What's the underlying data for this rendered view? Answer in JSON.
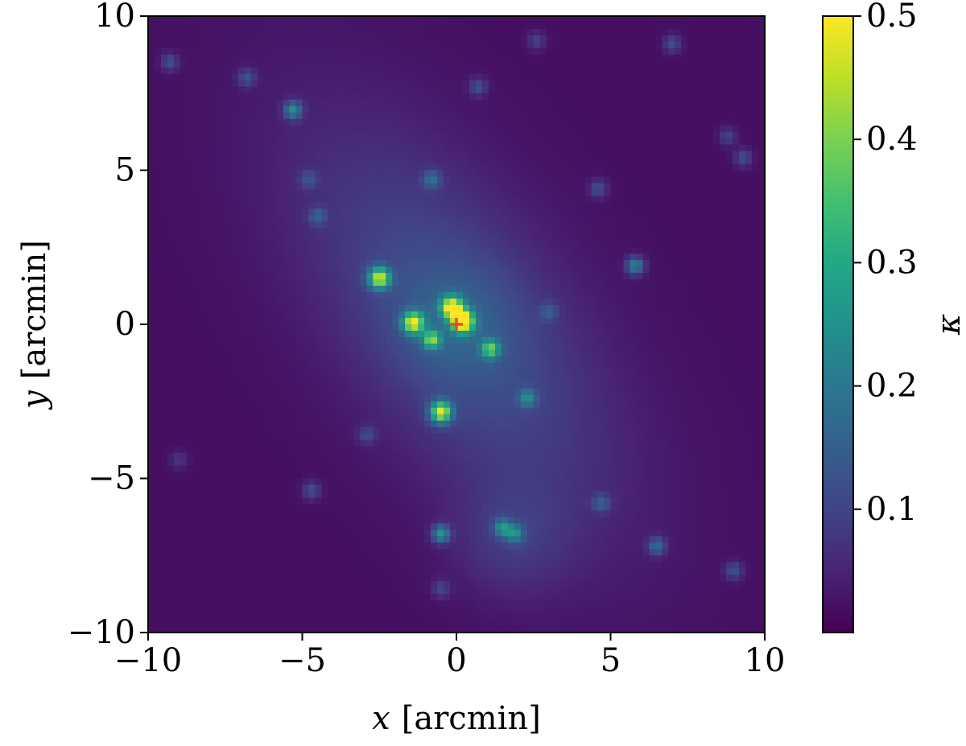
{
  "chart_data": {
    "type": "heatmap",
    "description": "convergence map",
    "xlabel": {
      "var": "x",
      "unit": "[arcmin]"
    },
    "ylabel": {
      "var": "y",
      "unit": "[arcmin]"
    },
    "xlim": [
      -10,
      10
    ],
    "ylim": [
      -10,
      10
    ],
    "xticks": [
      -10,
      -5,
      0,
      5,
      10
    ],
    "yticks": [
      -10,
      -5,
      0,
      5,
      10
    ],
    "xtick_labels": [
      "−10",
      "−5",
      "0",
      "5",
      "10"
    ],
    "ytick_labels": [
      "−10",
      "−5",
      "0",
      "5",
      "10"
    ],
    "grid": false,
    "colormap": "viridis",
    "colorbar": {
      "label": "κ",
      "range": [
        0.0,
        0.5
      ],
      "ticks": [
        0.1,
        0.2,
        0.3,
        0.4,
        0.5
      ],
      "tick_labels": [
        "0.1",
        "0.2",
        "0.3",
        "0.4",
        "0.5"
      ]
    },
    "background_kappa": 0.02,
    "diffuse_halo": {
      "center": [
        0.0,
        0.0
      ],
      "major_axis_angle_deg": 125,
      "sigma_major": 5.2,
      "sigma_minor": 2.4,
      "peak_kappa": 0.1
    },
    "secondary_halo": {
      "center": [
        1.8,
        -7.0
      ],
      "sigma": 1.3,
      "peak_kappa": 0.05
    },
    "peaks": [
      {
        "x": 0.2,
        "y": 0.1,
        "kappa": 0.5
      },
      {
        "x": -0.15,
        "y": 0.55,
        "kappa": 0.42
      },
      {
        "x": -2.5,
        "y": 1.5,
        "kappa": 0.4
      },
      {
        "x": -1.4,
        "y": 0.05,
        "kappa": 0.4
      },
      {
        "x": -0.5,
        "y": -2.85,
        "kappa": 0.42
      },
      {
        "x": -5.3,
        "y": 6.95,
        "kappa": 0.22
      },
      {
        "x": -0.8,
        "y": -0.5,
        "kappa": 0.3
      },
      {
        "x": 1.1,
        "y": -0.8,
        "kappa": 0.28
      },
      {
        "x": 5.8,
        "y": 1.9,
        "kappa": 0.22
      },
      {
        "x": -0.5,
        "y": -6.8,
        "kappa": 0.24
      },
      {
        "x": 1.5,
        "y": -6.6,
        "kappa": 0.2
      },
      {
        "x": 1.9,
        "y": -6.8,
        "kappa": 0.18
      },
      {
        "x": 2.3,
        "y": -2.4,
        "kappa": 0.17
      },
      {
        "x": 6.5,
        "y": -7.2,
        "kappa": 0.16
      },
      {
        "x": -0.8,
        "y": 4.7,
        "kappa": 0.14
      },
      {
        "x": 0.7,
        "y": 7.7,
        "kappa": 0.12
      },
      {
        "x": 7.0,
        "y": 9.1,
        "kappa": 0.12
      },
      {
        "x": -9.3,
        "y": 8.5,
        "kappa": 0.12
      },
      {
        "x": -6.8,
        "y": 8.0,
        "kappa": 0.12
      },
      {
        "x": 9.3,
        "y": 5.4,
        "kappa": 0.12
      },
      {
        "x": 9.0,
        "y": -8.0,
        "kappa": 0.12
      },
      {
        "x": 4.6,
        "y": 4.4,
        "kappa": 0.12
      },
      {
        "x": -4.7,
        "y": -5.4,
        "kappa": 0.12
      },
      {
        "x": -4.5,
        "y": 3.5,
        "kappa": 0.12
      },
      {
        "x": 4.7,
        "y": -5.8,
        "kappa": 0.12
      },
      {
        "x": -0.5,
        "y": -8.6,
        "kappa": 0.1
      },
      {
        "x": 3.0,
        "y": 0.4,
        "kappa": 0.1
      },
      {
        "x": -4.8,
        "y": 4.7,
        "kappa": 0.1
      },
      {
        "x": -2.9,
        "y": -3.6,
        "kappa": 0.1
      },
      {
        "x": 8.8,
        "y": 6.1,
        "kappa": 0.1
      },
      {
        "x": 2.6,
        "y": 9.2,
        "kappa": 0.1
      },
      {
        "x": -9.0,
        "y": -4.4,
        "kappa": 0.08
      }
    ],
    "marker": {
      "x": 0.0,
      "y": 0.0,
      "shape": "plus",
      "color": "#e05030"
    }
  }
}
